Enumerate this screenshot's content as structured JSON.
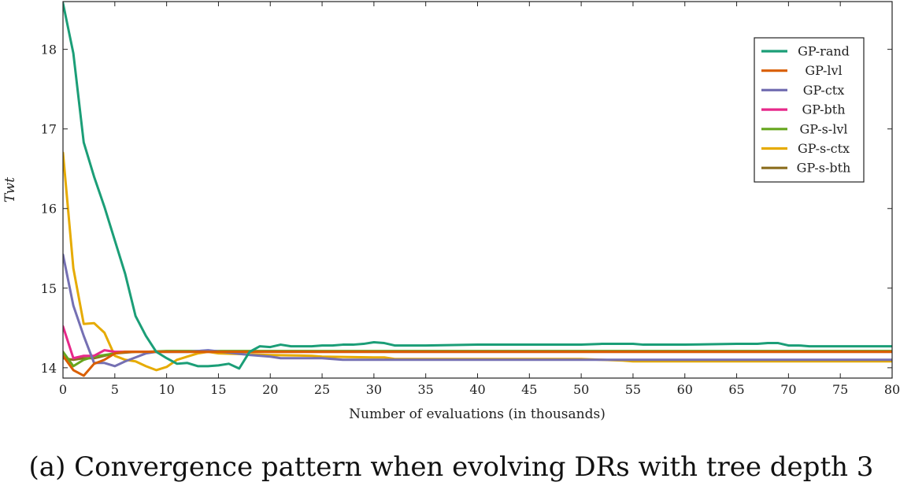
{
  "caption": "(a) Convergence pattern when evolving DRs with tree depth 3",
  "chart_data": {
    "type": "line",
    "xlabel": "Number of evaluations (in thousands)",
    "ylabel": "Twt",
    "xlim": [
      0,
      80
    ],
    "ylim": [
      13.87,
      18.6
    ],
    "xticks": [
      0,
      5,
      10,
      15,
      20,
      25,
      30,
      35,
      40,
      45,
      50,
      55,
      60,
      65,
      70,
      75,
      80
    ],
    "yticks": [
      14,
      15,
      16,
      17,
      18
    ],
    "grid": false,
    "legend_position": "top-right",
    "series": [
      {
        "name": "GP-rand",
        "color": "#1b9e77",
        "x": [
          0,
          1,
          2,
          3,
          4,
          5,
          6,
          7,
          8,
          9,
          10,
          11,
          12,
          13,
          14,
          15,
          16,
          17,
          18,
          19,
          20,
          21,
          22,
          23,
          24,
          25,
          26,
          27,
          28,
          29,
          30,
          31,
          32,
          33,
          34,
          35,
          40,
          45,
          50,
          52,
          55,
          56,
          60,
          65,
          67,
          68,
          69,
          70,
          71,
          72,
          75,
          80
        ],
        "y": [
          18.58,
          17.95,
          16.83,
          16.4,
          16.02,
          15.6,
          15.18,
          14.65,
          14.4,
          14.2,
          14.12,
          14.05,
          14.06,
          14.02,
          14.02,
          14.03,
          14.05,
          13.99,
          14.2,
          14.27,
          14.26,
          14.29,
          14.27,
          14.27,
          14.27,
          14.28,
          14.28,
          14.29,
          14.29,
          14.3,
          14.32,
          14.31,
          14.28,
          14.28,
          14.28,
          14.28,
          14.29,
          14.29,
          14.29,
          14.3,
          14.3,
          14.29,
          14.29,
          14.3,
          14.3,
          14.31,
          14.31,
          14.28,
          14.28,
          14.27,
          14.27,
          14.27
        ]
      },
      {
        "name": "GP-lvl",
        "color": "#d95f02",
        "x": [
          0,
          1,
          2,
          3,
          4,
          5,
          6,
          7,
          8,
          9,
          10,
          20,
          40,
          60,
          80
        ],
        "y": [
          14.15,
          13.97,
          13.9,
          14.05,
          14.1,
          14.18,
          14.2,
          14.2,
          14.2,
          14.2,
          14.2,
          14.2,
          14.2,
          14.2,
          14.2
        ]
      },
      {
        "name": "GP-ctx",
        "color": "#7570b3",
        "x": [
          0,
          1,
          2,
          3,
          4,
          5,
          6,
          7,
          8,
          9,
          10,
          12,
          14,
          16,
          18,
          20,
          21,
          25,
          26,
          27,
          30,
          35,
          40,
          50,
          52,
          55,
          60,
          70,
          75,
          80
        ],
        "y": [
          15.42,
          14.78,
          14.4,
          14.06,
          14.06,
          14.02,
          14.08,
          14.13,
          14.18,
          14.2,
          14.2,
          14.2,
          14.22,
          14.19,
          14.16,
          14.14,
          14.12,
          14.12,
          14.11,
          14.1,
          14.1,
          14.1,
          14.1,
          14.1,
          14.1,
          14.1,
          14.1,
          14.1,
          14.1,
          14.1
        ]
      },
      {
        "name": "GP-bth",
        "color": "#e7298a",
        "x": [
          0,
          1,
          2,
          3,
          4,
          5,
          6,
          7,
          8,
          10,
          20,
          40,
          60,
          80
        ],
        "y": [
          14.52,
          14.12,
          14.15,
          14.15,
          14.22,
          14.2,
          14.2,
          14.2,
          14.2,
          14.2,
          14.2,
          14.2,
          14.2,
          14.2
        ]
      },
      {
        "name": "GP-s-lvl",
        "color": "#66a61e",
        "x": [
          0,
          1,
          2,
          3,
          4,
          5,
          6,
          7,
          8,
          10,
          20,
          40,
          60,
          80
        ],
        "y": [
          14.2,
          14.02,
          14.1,
          14.14,
          14.16,
          14.18,
          14.2,
          14.2,
          14.2,
          14.21,
          14.21,
          14.21,
          14.21,
          14.21
        ]
      },
      {
        "name": "GP-s-ctx",
        "color": "#e6ab02",
        "x": [
          0,
          1,
          2,
          3,
          4,
          5,
          6,
          7,
          8,
          9,
          10,
          11,
          12,
          13,
          14,
          15,
          20,
          24,
          25,
          30,
          31,
          32,
          35,
          40,
          50,
          52,
          54,
          55,
          60,
          70,
          75,
          80
        ],
        "y": [
          16.7,
          15.25,
          14.55,
          14.56,
          14.44,
          14.15,
          14.1,
          14.08,
          14.02,
          13.97,
          14.01,
          14.1,
          14.14,
          14.18,
          14.2,
          14.18,
          14.16,
          14.15,
          14.14,
          14.13,
          14.13,
          14.11,
          14.11,
          14.11,
          14.11,
          14.1,
          14.09,
          14.08,
          14.08,
          14.08,
          14.08,
          14.08
        ]
      },
      {
        "name": "GP-s-bth",
        "color": "#8b6d1e",
        "x": [
          0,
          1,
          2,
          3,
          4,
          5,
          6,
          7,
          8,
          10,
          20,
          40,
          60,
          80
        ],
        "y": [
          14.12,
          14.1,
          14.12,
          14.12,
          14.15,
          14.18,
          14.19,
          14.2,
          14.2,
          14.2,
          14.2,
          14.2,
          14.2,
          14.2
        ]
      }
    ]
  }
}
